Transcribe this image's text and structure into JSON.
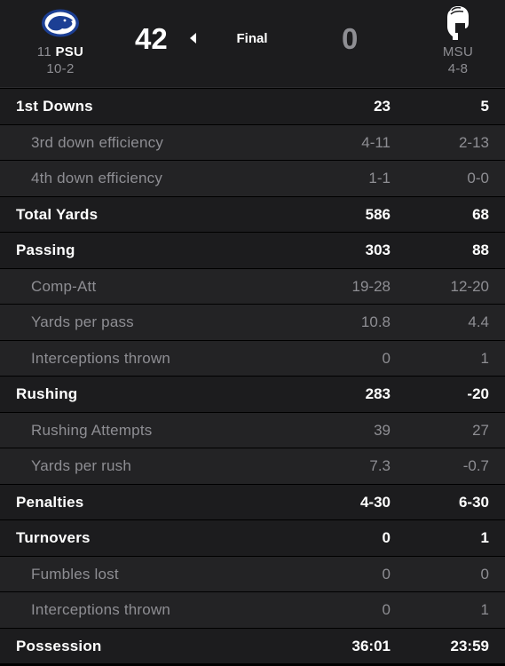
{
  "header": {
    "home": {
      "rank": "11",
      "abbr": "PSU",
      "record": "10-2",
      "score": "42",
      "logo_icon": "nittany-lion-icon",
      "color": "#1c3f94"
    },
    "away": {
      "abbr": "MSU",
      "record": "4-8",
      "score": "0",
      "logo_icon": "spartan-helmet-icon",
      "color": "#ffffff"
    },
    "status": "Final"
  },
  "stats": [
    {
      "label": "1st Downs",
      "home": "23",
      "away": "5",
      "type": "main"
    },
    {
      "label": "3rd down efficiency",
      "home": "4-11",
      "away": "2-13",
      "type": "sub"
    },
    {
      "label": "4th down efficiency",
      "home": "1-1",
      "away": "0-0",
      "type": "sub"
    },
    {
      "label": "Total Yards",
      "home": "586",
      "away": "68",
      "type": "main"
    },
    {
      "label": "Passing",
      "home": "303",
      "away": "88",
      "type": "main"
    },
    {
      "label": "Comp-Att",
      "home": "19-28",
      "away": "12-20",
      "type": "sub"
    },
    {
      "label": "Yards per pass",
      "home": "10.8",
      "away": "4.4",
      "type": "sub"
    },
    {
      "label": "Interceptions thrown",
      "home": "0",
      "away": "1",
      "type": "sub"
    },
    {
      "label": "Rushing",
      "home": "283",
      "away": "-20",
      "type": "main"
    },
    {
      "label": "Rushing Attempts",
      "home": "39",
      "away": "27",
      "type": "sub"
    },
    {
      "label": "Yards per rush",
      "home": "7.3",
      "away": "-0.7",
      "type": "sub"
    },
    {
      "label": "Penalties",
      "home": "4-30",
      "away": "6-30",
      "type": "main"
    },
    {
      "label": "Turnovers",
      "home": "0",
      "away": "1",
      "type": "main"
    },
    {
      "label": "Fumbles lost",
      "home": "0",
      "away": "0",
      "type": "sub"
    },
    {
      "label": "Interceptions thrown",
      "home": "0",
      "away": "1",
      "type": "sub"
    },
    {
      "label": "Possession",
      "home": "36:01",
      "away": "23:59",
      "type": "main"
    }
  ]
}
